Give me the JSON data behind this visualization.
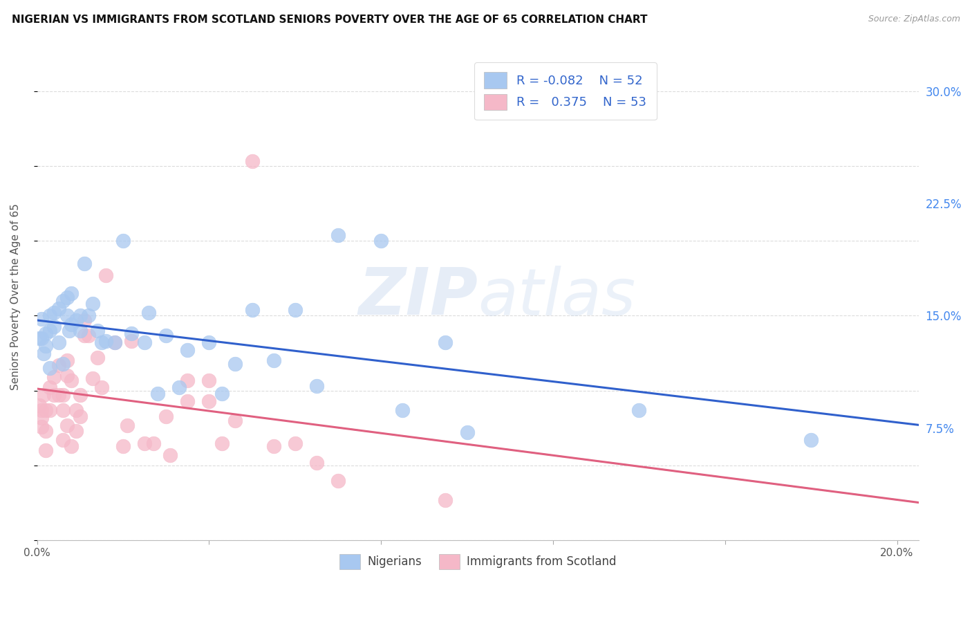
{
  "title": "NIGERIAN VS IMMIGRANTS FROM SCOTLAND SENIORS POVERTY OVER THE AGE OF 65 CORRELATION CHART",
  "source": "Source: ZipAtlas.com",
  "ylabel": "Seniors Poverty Over the Age of 65",
  "xlim": [
    0.0,
    0.205
  ],
  "ylim": [
    0.0,
    0.325
  ],
  "xticks": [
    0.0,
    0.04,
    0.08,
    0.12,
    0.16,
    0.2
  ],
  "xticklabels": [
    "0.0%",
    "",
    "",
    "",
    "",
    "20.0%"
  ],
  "yticks": [
    0.0,
    0.075,
    0.15,
    0.225,
    0.3
  ],
  "yticklabels_right": [
    "",
    "7.5%",
    "15.0%",
    "22.5%",
    "30.0%"
  ],
  "grid_color": "#cccccc",
  "bg_color": "#ffffff",
  "watermark_zip": "ZIP",
  "watermark_atlas": "atlas",
  "legend_R_blue": "-0.082",
  "legend_N_blue": "52",
  "legend_R_pink": "0.375",
  "legend_N_pink": "53",
  "blue_color": "#a8c8f0",
  "pink_color": "#f5b8c8",
  "blue_line_color": "#3060cc",
  "pink_line_color": "#e06080",
  "gray_dash_color": "#aaaaaa",
  "nigerians_x": [
    0.0005,
    0.001,
    0.001,
    0.0015,
    0.002,
    0.002,
    0.003,
    0.003,
    0.003,
    0.004,
    0.004,
    0.005,
    0.005,
    0.006,
    0.006,
    0.007,
    0.007,
    0.0075,
    0.008,
    0.008,
    0.009,
    0.01,
    0.01,
    0.011,
    0.012,
    0.013,
    0.014,
    0.015,
    0.016,
    0.018,
    0.02,
    0.022,
    0.025,
    0.026,
    0.028,
    0.03,
    0.033,
    0.035,
    0.04,
    0.043,
    0.046,
    0.05,
    0.055,
    0.06,
    0.065,
    0.07,
    0.08,
    0.085,
    0.095,
    0.1,
    0.14,
    0.18
  ],
  "nigerians_y": [
    0.135,
    0.148,
    0.135,
    0.125,
    0.138,
    0.13,
    0.15,
    0.14,
    0.115,
    0.152,
    0.143,
    0.155,
    0.132,
    0.16,
    0.118,
    0.162,
    0.15,
    0.14,
    0.165,
    0.144,
    0.147,
    0.15,
    0.14,
    0.185,
    0.15,
    0.158,
    0.14,
    0.132,
    0.133,
    0.132,
    0.2,
    0.138,
    0.132,
    0.152,
    0.098,
    0.137,
    0.102,
    0.127,
    0.132,
    0.098,
    0.118,
    0.154,
    0.12,
    0.154,
    0.103,
    0.204,
    0.2,
    0.087,
    0.132,
    0.072,
    0.087,
    0.067
  ],
  "scotland_x": [
    0.0005,
    0.001,
    0.001,
    0.001,
    0.0015,
    0.002,
    0.002,
    0.002,
    0.003,
    0.003,
    0.004,
    0.004,
    0.005,
    0.005,
    0.006,
    0.006,
    0.006,
    0.007,
    0.007,
    0.007,
    0.008,
    0.008,
    0.009,
    0.009,
    0.01,
    0.01,
    0.011,
    0.011,
    0.012,
    0.013,
    0.014,
    0.015,
    0.016,
    0.018,
    0.02,
    0.021,
    0.022,
    0.025,
    0.027,
    0.03,
    0.031,
    0.035,
    0.035,
    0.04,
    0.04,
    0.043,
    0.046,
    0.05,
    0.055,
    0.06,
    0.065,
    0.07,
    0.095
  ],
  "scotland_y": [
    0.09,
    0.087,
    0.082,
    0.076,
    0.097,
    0.087,
    0.073,
    0.06,
    0.102,
    0.087,
    0.109,
    0.097,
    0.117,
    0.097,
    0.097,
    0.087,
    0.067,
    0.12,
    0.11,
    0.077,
    0.063,
    0.107,
    0.087,
    0.073,
    0.097,
    0.083,
    0.147,
    0.137,
    0.137,
    0.108,
    0.122,
    0.102,
    0.177,
    0.132,
    0.063,
    0.077,
    0.133,
    0.065,
    0.065,
    0.083,
    0.057,
    0.093,
    0.107,
    0.093,
    0.107,
    0.065,
    0.08,
    0.253,
    0.063,
    0.065,
    0.052,
    0.04,
    0.027
  ]
}
